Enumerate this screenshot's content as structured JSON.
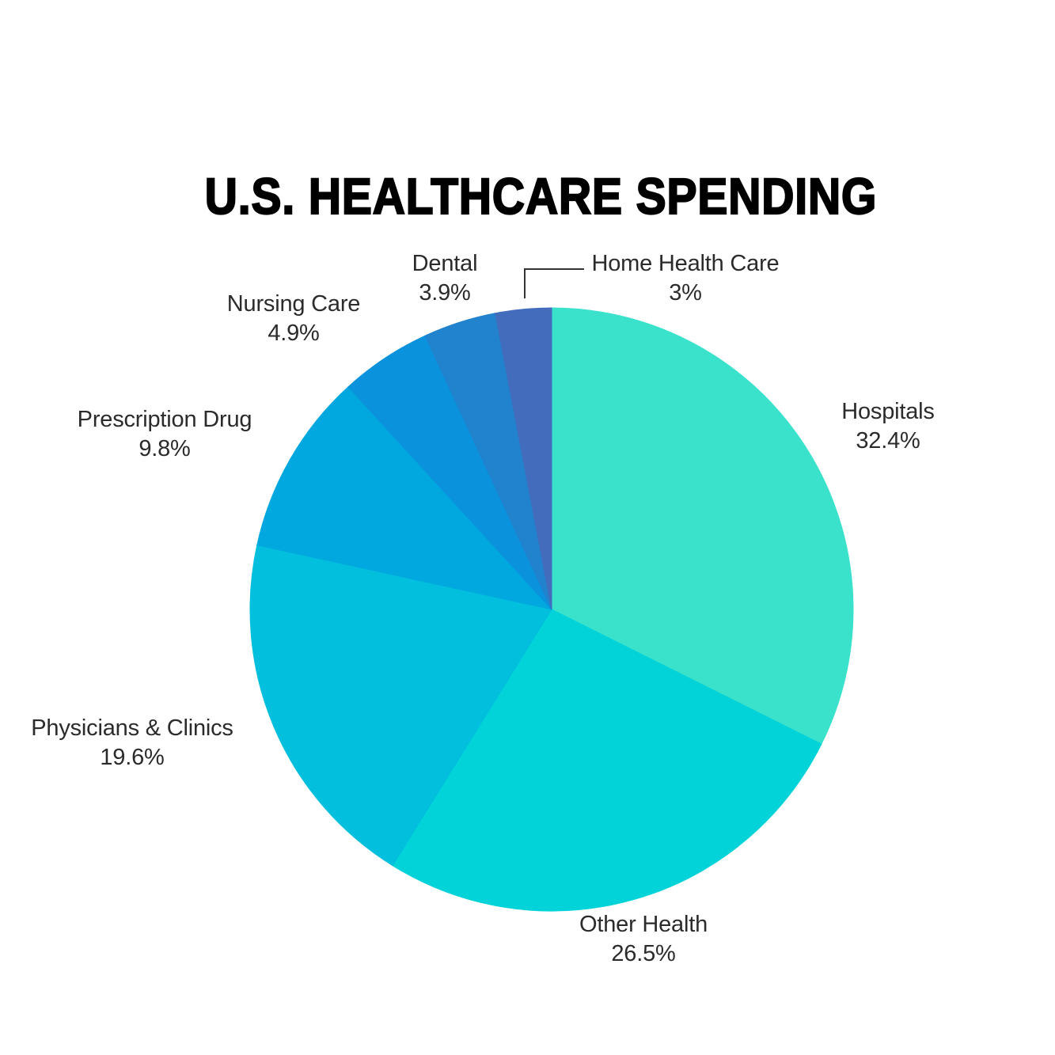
{
  "title": "U.S. HEALTHCARE SPENDING",
  "chart_data": {
    "type": "pie",
    "title": "U.S. HEALTHCARE SPENDING",
    "start_angle_deg": -90,
    "direction": "clockwise",
    "legend_position": "outside-labels",
    "slices": [
      {
        "label": "Hospitals",
        "pct_label": "32.4%",
        "value": 32.4,
        "color": "#3ae2cc"
      },
      {
        "label": "Other Health",
        "pct_label": "26.5%",
        "value": 26.5,
        "color": "#02d3d9"
      },
      {
        "label": "Physicians & Clinics",
        "pct_label": "19.6%",
        "value": 19.6,
        "color": "#01bfdd"
      },
      {
        "label": "Prescription Drug",
        "pct_label": "9.8%",
        "value": 9.8,
        "color": "#01a8df"
      },
      {
        "label": "Nursing Care",
        "pct_label": "4.9%",
        "value": 4.9,
        "color": "#0a93dc"
      },
      {
        "label": "Dental",
        "pct_label": "3.9%",
        "value": 3.9,
        "color": "#2182ce"
      },
      {
        "label": "Home Health Care",
        "pct_label": "3%",
        "value": 3.0,
        "color": "#436cbd"
      }
    ]
  }
}
